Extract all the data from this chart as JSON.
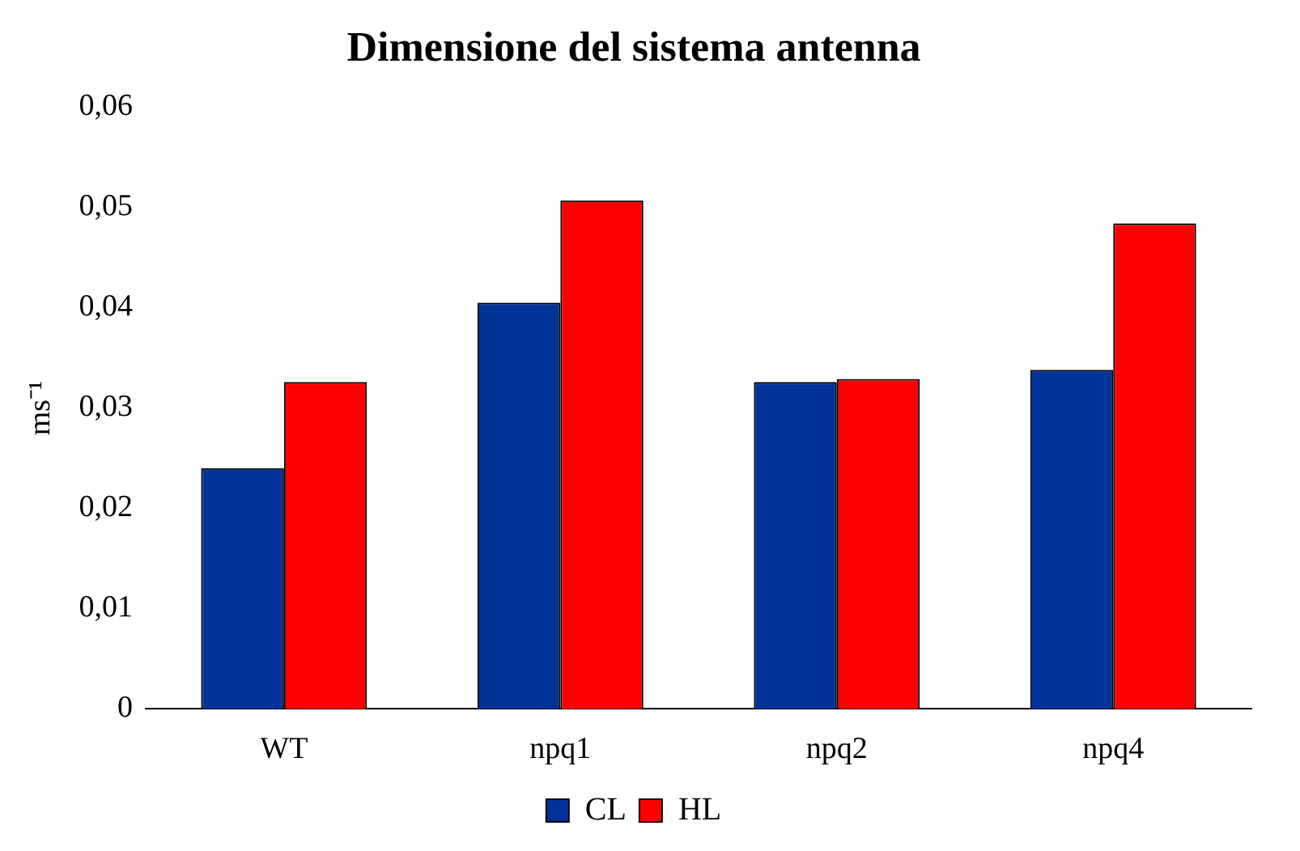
{
  "chart_data": {
    "type": "bar",
    "title": "Dimensione del sistema antenna",
    "ylabel": "ms⁻¹",
    "categories": [
      "WT",
      "npq1",
      "npq2",
      "npq4"
    ],
    "series": [
      {
        "name": "CL",
        "color": "#003399",
        "values": [
          0.024,
          0.0405,
          0.0326,
          0.0338
        ]
      },
      {
        "name": "HL",
        "color": "#ff0000",
        "values": [
          0.0326,
          0.0507,
          0.0329,
          0.0484
        ]
      }
    ],
    "ylim": [
      0,
      0.06
    ],
    "yticks": [
      0,
      {
        "value": 0.01,
        "label": "0,01"
      },
      {
        "value": 0.02,
        "label": "0,02"
      },
      {
        "value": 0.03,
        "label": "0,03"
      },
      {
        "value": 0.04,
        "label": "0,04"
      },
      {
        "value": 0.05,
        "label": "0,05"
      },
      {
        "value": 0.06,
        "label": "0,06"
      }
    ],
    "grid": false,
    "legend": "bottom"
  }
}
